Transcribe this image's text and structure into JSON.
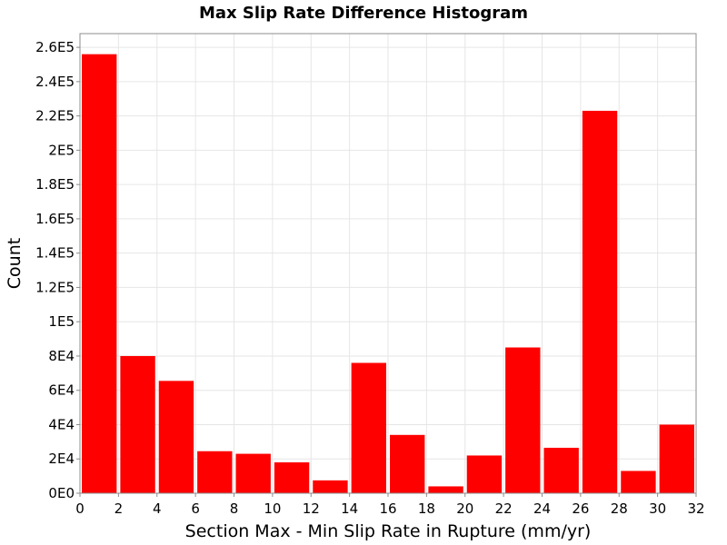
{
  "chart_data": {
    "type": "bar",
    "title": "Max Slip Rate Difference Histogram",
    "xlabel": "Section Max - Min Slip Rate in Rupture (mm/yr)",
    "ylabel": "Count",
    "xlim": [
      0,
      32
    ],
    "ylim": [
      0,
      268000
    ],
    "bin_width": 2,
    "bin_centers": [
      1,
      3,
      5,
      7,
      9,
      11,
      13,
      15,
      17,
      19,
      21,
      23,
      25,
      27,
      29,
      31
    ],
    "values": [
      256000,
      80000,
      65500,
      24500,
      23000,
      18000,
      7500,
      76000,
      34000,
      4000,
      22000,
      85000,
      26500,
      223000,
      13000,
      40000
    ],
    "x_ticks": [
      0,
      2,
      4,
      6,
      8,
      10,
      12,
      14,
      16,
      18,
      20,
      22,
      24,
      26,
      28,
      30,
      32
    ],
    "x_tick_labels": [
      "0",
      "2",
      "4",
      "6",
      "8",
      "10",
      "12",
      "14",
      "16",
      "18",
      "20",
      "22",
      "24",
      "26",
      "28",
      "30",
      "32"
    ],
    "y_ticks": [
      0,
      20000,
      40000,
      60000,
      80000,
      100000,
      120000,
      140000,
      160000,
      180000,
      200000,
      220000,
      240000,
      260000
    ],
    "y_tick_labels": [
      "0E0",
      "2E4",
      "4E4",
      "6E4",
      "8E4",
      "1E5",
      "1.2E5",
      "1.4E5",
      "1.6E5",
      "1.8E5",
      "2E5",
      "2.2E5",
      "2.4E5",
      "2.6E5"
    ],
    "grid": true,
    "colors": {
      "bar": "#ff0000",
      "grid": "#e6e6e6",
      "frame": "#8c8c8c"
    }
  }
}
